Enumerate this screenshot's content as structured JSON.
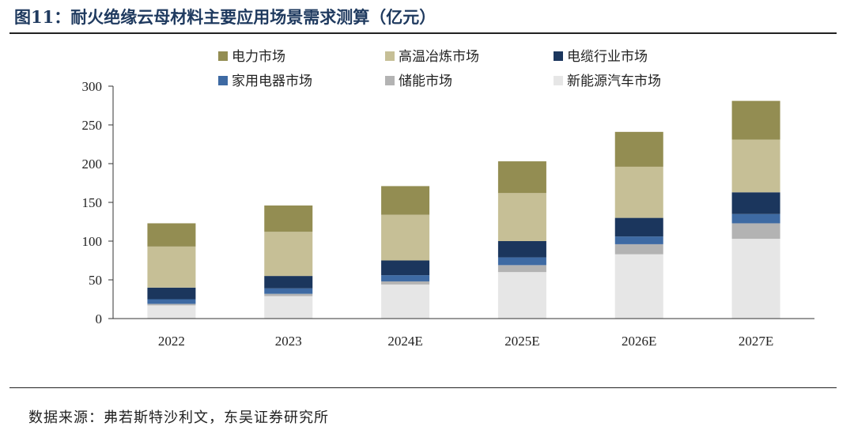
{
  "figure": {
    "title": "图11：耐火绝缘云母材料主要应用场景需求测算（亿元）",
    "source": "数据来源：弗若斯特沙利文，东吴证券研究所"
  },
  "chart_data": {
    "type": "bar",
    "stacked": true,
    "categories": [
      "2022",
      "2023",
      "2024E",
      "2025E",
      "2026E",
      "2027E"
    ],
    "ylim": [
      0,
      300
    ],
    "yticks": [
      0,
      50,
      100,
      150,
      200,
      250,
      300
    ],
    "grid": false,
    "legend_position": "top",
    "series": [
      {
        "name": "新能源汽车市场",
        "color": "#e6e6e6",
        "values": [
          17,
          29,
          44,
          60,
          83,
          103
        ]
      },
      {
        "name": "储能市场",
        "color": "#b3b3b3",
        "values": [
          2,
          3,
          4,
          9,
          13,
          20
        ]
      },
      {
        "name": "家用电器市场",
        "color": "#3e6aa3",
        "values": [
          6,
          7,
          8,
          10,
          10,
          12
        ]
      },
      {
        "name": "电缆行业市场",
        "color": "#1b365d",
        "values": [
          15,
          16,
          19,
          21,
          24,
          28
        ]
      },
      {
        "name": "高温冶炼市场",
        "color": "#c6bf96",
        "values": [
          53,
          57,
          59,
          62,
          66,
          68
        ]
      },
      {
        "name": "电力市场",
        "color": "#938d52",
        "values": [
          30,
          34,
          37,
          41,
          45,
          50
        ]
      }
    ],
    "legend_order": [
      "电力市场",
      "高温冶炼市场",
      "电缆行业市场",
      "家用电器市场",
      "储能市场",
      "新能源汽车市场"
    ]
  }
}
